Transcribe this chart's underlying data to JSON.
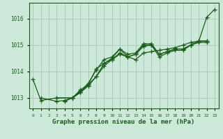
{
  "bg_color": "#cce8d8",
  "grid_color": "#aaccbb",
  "line_color": "#1a5c1a",
  "xlabel": "Graphe pression niveau de la mer (hPa)",
  "ylim": [
    1012.6,
    1016.6
  ],
  "xlim": [
    -0.5,
    23.5
  ],
  "yticks": [
    1013,
    1014,
    1015,
    1016
  ],
  "xticks": [
    0,
    1,
    2,
    3,
    4,
    5,
    6,
    7,
    8,
    9,
    10,
    11,
    12,
    13,
    14,
    15,
    16,
    17,
    18,
    19,
    20,
    21,
    22,
    23
  ],
  "series": [
    {
      "x": [
        0,
        1,
        3,
        5,
        6,
        7,
        8,
        9,
        10,
        11,
        12,
        13,
        14,
        15,
        16,
        17,
        18,
        19,
        20,
        21,
        22,
        23
      ],
      "y": [
        1013.7,
        1012.9,
        1013.0,
        1013.0,
        1013.25,
        1013.55,
        1014.05,
        1014.45,
        1014.55,
        1014.85,
        1014.55,
        1014.45,
        1014.7,
        1014.75,
        1014.8,
        1014.85,
        1014.9,
        1015.0,
        1015.1,
        1015.15,
        1016.05,
        1016.35
      ]
    },
    {
      "x": [
        3,
        5,
        6,
        7,
        8,
        9,
        10,
        11,
        12,
        13,
        14,
        15,
        16,
        17,
        18,
        19,
        20,
        21,
        22
      ],
      "y": [
        1013.0,
        1013.0,
        1013.3,
        1013.5,
        1014.1,
        1014.3,
        1014.5,
        1014.85,
        1014.65,
        1014.7,
        1015.05,
        1015.05,
        1014.65,
        1014.75,
        1014.85,
        1014.85,
        1015.0,
        1015.15,
        1015.15
      ]
    },
    {
      "x": [
        1,
        3,
        4,
        5,
        6,
        7,
        8,
        9,
        10,
        11,
        12,
        13,
        14,
        15,
        16,
        17,
        18,
        19,
        20,
        21,
        22
      ],
      "y": [
        1013.0,
        1012.87,
        1012.9,
        1013.0,
        1013.2,
        1013.5,
        1013.8,
        1014.3,
        1014.45,
        1014.7,
        1014.55,
        1014.65,
        1015.0,
        1015.0,
        1014.65,
        1014.75,
        1014.85,
        1014.85,
        1015.0,
        1015.15,
        1015.15
      ]
    },
    {
      "x": [
        4,
        5,
        6,
        7,
        8,
        9,
        10,
        11,
        12,
        13,
        14,
        15,
        16,
        17,
        18,
        19,
        20,
        21,
        22
      ],
      "y": [
        1012.87,
        1013.0,
        1013.2,
        1013.45,
        1013.8,
        1014.2,
        1014.45,
        1014.65,
        1014.55,
        1014.65,
        1014.95,
        1015.0,
        1014.55,
        1014.7,
        1014.8,
        1014.8,
        1015.0,
        1015.1,
        1015.1
      ]
    }
  ]
}
